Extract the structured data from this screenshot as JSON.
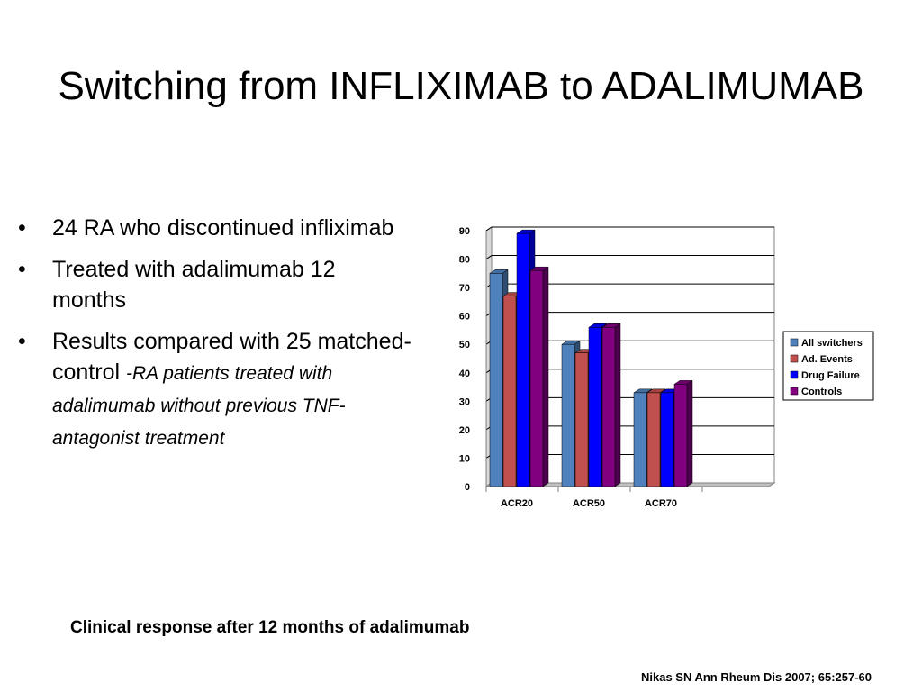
{
  "slide": {
    "title": "Switching from INFLIXIMAB to ADALIMUMAB",
    "bullets": [
      {
        "text": "24 RA who discontinued infliximab",
        "note": ""
      },
      {
        "text": "Treated with adalimumab 12 months",
        "note": ""
      },
      {
        "text": "Results compared with 25 matched-control",
        "note": "-RA patients treated with adalimumab without previous TNF-antagonist treatment"
      }
    ],
    "caption": "Clinical response after 12 months of adalimumab",
    "citation": "Nikas SN Ann Rheum Dis 2007; 65:257-60"
  },
  "chart_data": {
    "type": "bar",
    "categories": [
      "ACR20",
      "ACR50",
      "ACR70"
    ],
    "series": [
      {
        "name": "All switchers",
        "values": [
          75,
          50,
          33
        ],
        "color": "#4f81bd"
      },
      {
        "name": "Ad. Events",
        "values": [
          67,
          47,
          33
        ],
        "color": "#c0504d"
      },
      {
        "name": "Drug Failure",
        "values": [
          89,
          56,
          33
        ],
        "color": "#0000ff"
      },
      {
        "name": "Controls",
        "values": [
          76,
          56,
          36
        ],
        "color": "#800080"
      }
    ],
    "yticks": [
      0,
      10,
      20,
      30,
      40,
      50,
      60,
      70,
      80,
      90
    ],
    "ylim": [
      0,
      90
    ],
    "grid": true,
    "legend": "right",
    "style": "3d-clustered"
  }
}
